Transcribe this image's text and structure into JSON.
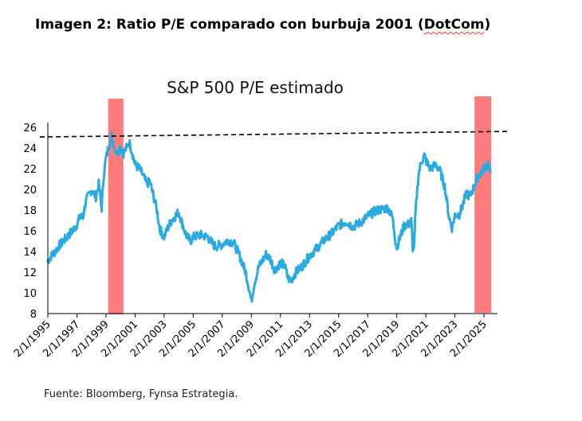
{
  "heading": {
    "prefix": "Imagen 2: Ratio P/E comparado con burbuja 2001 (",
    "underlined": "DotCom",
    "suffix": ")"
  },
  "source": "Fuente: Bloomberg, Fynsa Estrategia.",
  "colors": {
    "line": "#29abe2",
    "highlight": "#ff7b7b",
    "reference": "#000000"
  },
  "chart_data": {
    "type": "line",
    "title": "S&P 500 P/E estimado",
    "xlabel": "",
    "ylabel": "",
    "xlim": [
      1995.0,
      2025.6
    ],
    "ylim": [
      8,
      26
    ],
    "y_ticks": [
      8,
      10,
      12,
      14,
      16,
      18,
      20,
      22,
      24,
      26
    ],
    "x_tick_labels": [
      "2/1/1995",
      "2/1/1997",
      "2/1/1999",
      "2/1/2001",
      "2/1/2003",
      "2/1/2005",
      "2/1/2007",
      "2/1/2009",
      "2/1/2011",
      "2/1/2013",
      "2/1/2015",
      "2/1/2017",
      "2/1/2019",
      "2/1/2021",
      "2/1/2023",
      "2/1/2025"
    ],
    "x_tick_values": [
      1995,
      1997,
      1999,
      2001,
      2003,
      2005,
      2007,
      2009,
      2011,
      2013,
      2015,
      2017,
      2019,
      2021,
      2023,
      2025
    ],
    "grid": false,
    "reference_line": {
      "y": 25.3,
      "style": "dashed"
    },
    "highlight_bands": [
      {
        "x_start": 1999.15,
        "x_end": 2000.2
      },
      {
        "x_start": 2024.35,
        "x_end": 2025.5
      }
    ],
    "series": [
      {
        "x": [
          1995.0,
          1995.25,
          1995.5,
          1995.75,
          1996.0,
          1996.25,
          1996.5,
          1996.75,
          1997.0,
          1997.25,
          1997.4,
          1997.6,
          1997.8,
          1998.0,
          1998.3,
          1998.5,
          1998.7,
          1998.85,
          1999.0,
          1999.2,
          1999.4,
          1999.6,
          1999.8,
          2000.0,
          2000.2,
          2000.4,
          2000.6,
          2000.8,
          2001.0,
          2001.3,
          2001.6,
          2001.8,
          2002.0,
          2002.3,
          2002.5,
          2002.7,
          2002.9,
          2003.0,
          2003.2,
          2003.5,
          2004.0,
          2004.3,
          2004.5,
          2004.8,
          2005.0,
          2005.5,
          2006.0,
          2006.4,
          2006.6,
          2007.0,
          2007.4,
          2007.8,
          2008.0,
          2008.3,
          2008.6,
          2008.85,
          2009.0,
          2009.2,
          2009.5,
          2010.0,
          2010.3,
          2010.6,
          2011.0,
          2011.3,
          2011.5,
          2011.7,
          2012.0,
          2012.5,
          2013.0,
          2013.5,
          2014.0,
          2014.5,
          2015.0,
          2015.5,
          2016.0,
          2016.5,
          2017.0,
          2017.5,
          2018.0,
          2018.4,
          2018.7,
          2018.9,
          2019.0,
          2019.5,
          2019.9,
          2020.0,
          2020.1,
          2020.2,
          2020.3,
          2020.5,
          2020.7,
          2020.9,
          2021.0,
          2021.3,
          2021.7,
          2022.0,
          2022.3,
          2022.6,
          2022.8,
          2023.0,
          2023.3,
          2023.5,
          2023.7,
          2023.85,
          2024.0,
          2024.3,
          2024.6,
          2024.9,
          2025.1,
          2025.3,
          2025.45
        ],
        "y": [
          13.1,
          13.6,
          14.0,
          14.5,
          14.9,
          15.3,
          15.7,
          16.1,
          16.6,
          17.5,
          17.2,
          18.8,
          19.4,
          20.0,
          19.3,
          20.5,
          18.2,
          21.5,
          23.0,
          24.3,
          25.2,
          24.0,
          23.5,
          24.2,
          23.5,
          24.0,
          24.6,
          23.6,
          22.4,
          22.0,
          21.2,
          20.5,
          20.8,
          19.2,
          18.0,
          16.2,
          15.6,
          15.4,
          16.1,
          17.0,
          17.8,
          16.5,
          15.6,
          15.0,
          15.4,
          15.6,
          15.4,
          14.6,
          14.5,
          14.7,
          15.1,
          14.8,
          14.2,
          13.2,
          12.0,
          10.4,
          9.2,
          10.9,
          12.5,
          13.7,
          13.3,
          12.2,
          12.9,
          12.6,
          11.5,
          11.1,
          11.9,
          12.6,
          13.6,
          14.3,
          15.1,
          15.7,
          16.5,
          16.9,
          16.4,
          16.8,
          17.4,
          17.9,
          18.1,
          18.2,
          17.3,
          15.2,
          14.4,
          16.5,
          16.7,
          17.0,
          14.4,
          14.5,
          18.0,
          21.5,
          22.7,
          23.3,
          22.8,
          22.0,
          22.4,
          21.7,
          20.3,
          17.3,
          16.3,
          17.5,
          17.6,
          18.3,
          19.2,
          19.7,
          19.2,
          20.2,
          21.3,
          21.8,
          22.2,
          22.5,
          21.7
        ]
      }
    ]
  }
}
